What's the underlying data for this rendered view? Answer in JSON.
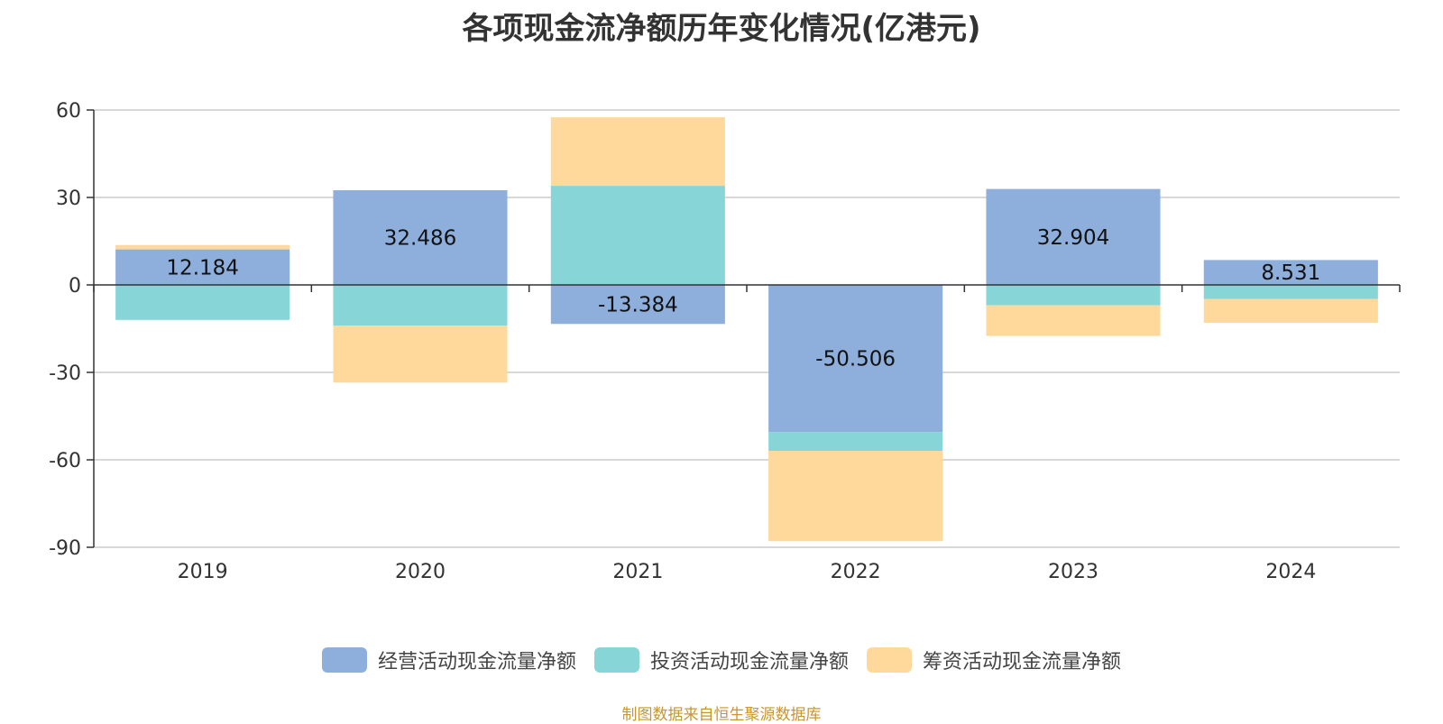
{
  "chart_data": {
    "type": "bar",
    "stacked": true,
    "title": "各项现金流净额历年变化情况(亿港元)",
    "categories": [
      "2019",
      "2020",
      "2021",
      "2022",
      "2023",
      "2024"
    ],
    "series": [
      {
        "name": "经营活动现金流量净额",
        "color": "#8eaedc",
        "values": [
          12.184,
          32.486,
          -13.384,
          -50.506,
          32.904,
          8.531
        ],
        "labels": [
          "12.184",
          "32.486",
          "-13.384",
          "-50.506",
          "32.904",
          "8.531"
        ]
      },
      {
        "name": "投资活动现金流量净额",
        "color": "#88d5d8",
        "values": [
          -12.0,
          -14.0,
          34.0,
          -6.4,
          -7.0,
          -4.8
        ]
      },
      {
        "name": "筹资活动现金流量净额",
        "color": "#fed99b",
        "values": [
          1.5,
          -19.5,
          23.5,
          -31.0,
          -10.5,
          -8.2
        ]
      }
    ],
    "ylim": [
      -90,
      60
    ],
    "yticks": [
      60,
      30,
      0,
      -30,
      -60,
      -90
    ],
    "grid": true,
    "legend_position": "bottom",
    "xlabel": "",
    "ylabel": ""
  },
  "source_note": "制图数据来自恒生聚源数据库"
}
